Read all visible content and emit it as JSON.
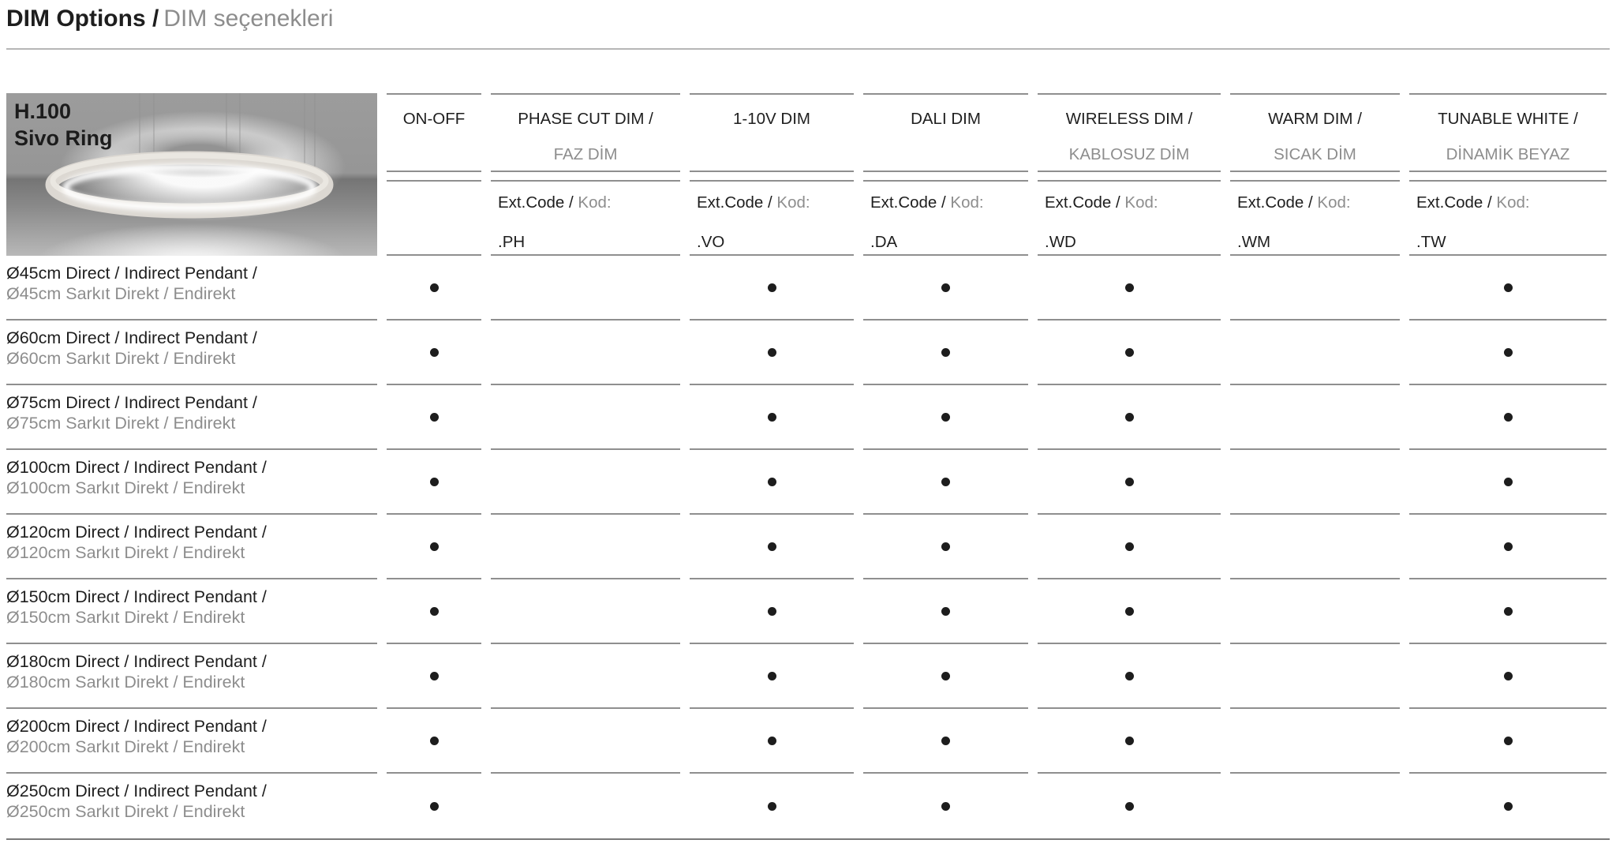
{
  "page_title": {
    "primary": "DIM Options /",
    "secondary": "DIM seçenekleri"
  },
  "product": {
    "model": "H.100",
    "name": "Sivo Ring"
  },
  "table": {
    "ext_code_label": {
      "en": "Ext.Code /",
      "tr": "Kod:"
    },
    "columns": [
      {
        "id": "on-off",
        "title_en": "ON-OFF",
        "title_tr": "",
        "code": ""
      },
      {
        "id": "phase-cut-dim",
        "title_en": "PHASE CUT DIM /",
        "title_tr": "FAZ DİM",
        "code": ".PH"
      },
      {
        "id": "1-10v-dim",
        "title_en": "1-10V DIM",
        "title_tr": "",
        "code": ".VO"
      },
      {
        "id": "dali-dim",
        "title_en": "DALI DIM",
        "title_tr": "",
        "code": ".DA"
      },
      {
        "id": "wireless-dim",
        "title_en": "WIRELESS DIM /",
        "title_tr": "KABLOSUZ DİM",
        "code": ".WD"
      },
      {
        "id": "warm-dim",
        "title_en": "WARM DIM /",
        "title_tr": "SICAK DİM",
        "code": ".WM"
      },
      {
        "id": "tunable-white",
        "title_en": "TUNABLE WHITE /",
        "title_tr": "DİNAMİK BEYAZ",
        "code": ".TW"
      }
    ],
    "rows": [
      {
        "label_en": "Ø45cm Direct / Indirect Pendant /",
        "label_tr": "Ø45cm Sarkıt Direkt / Endirekt",
        "availability": [
          true,
          false,
          true,
          true,
          true,
          false,
          true
        ]
      },
      {
        "label_en": "Ø60cm Direct / Indirect Pendant /",
        "label_tr": "Ø60cm Sarkıt Direkt / Endirekt",
        "availability": [
          true,
          false,
          true,
          true,
          true,
          false,
          true
        ]
      },
      {
        "label_en": "Ø75cm Direct / Indirect Pendant /",
        "label_tr": "Ø75cm Sarkıt Direkt / Endirekt",
        "availability": [
          true,
          false,
          true,
          true,
          true,
          false,
          true
        ]
      },
      {
        "label_en": "Ø100cm Direct / Indirect Pendant /",
        "label_tr": "Ø100cm Sarkıt Direkt / Endirekt",
        "availability": [
          true,
          false,
          true,
          true,
          true,
          false,
          true
        ]
      },
      {
        "label_en": "Ø120cm Direct / Indirect Pendant /",
        "label_tr": "Ø120cm Sarkıt Direkt / Endirekt",
        "availability": [
          true,
          false,
          true,
          true,
          true,
          false,
          true
        ]
      },
      {
        "label_en": "Ø150cm Direct / Indirect Pendant /",
        "label_tr": "Ø150cm Sarkıt Direkt / Endirekt",
        "availability": [
          true,
          false,
          true,
          true,
          true,
          false,
          true
        ]
      },
      {
        "label_en": "Ø180cm Direct / Indirect Pendant /",
        "label_tr": "Ø180cm Sarkıt Direkt / Endirekt",
        "availability": [
          true,
          false,
          true,
          true,
          true,
          false,
          true
        ]
      },
      {
        "label_en": "Ø200cm Direct / Indirect Pendant /",
        "label_tr": "Ø200cm Sarkıt Direkt / Endirekt",
        "availability": [
          true,
          false,
          true,
          true,
          true,
          false,
          true
        ]
      },
      {
        "label_en": "Ø250cm Direct / Indirect Pendant /",
        "label_tr": "Ø250cm Sarkıt Direkt / Endirekt",
        "availability": [
          true,
          false,
          true,
          true,
          true,
          false,
          true
        ]
      }
    ]
  },
  "colors": {
    "text_dark": "#1e1e1e",
    "text_gray": "#8d8d8d",
    "rule": "#8f8f8f",
    "bottom_rule": "#7a7a7a",
    "title_rule": "#b6b6b6",
    "dot": "#1d1d1d"
  }
}
